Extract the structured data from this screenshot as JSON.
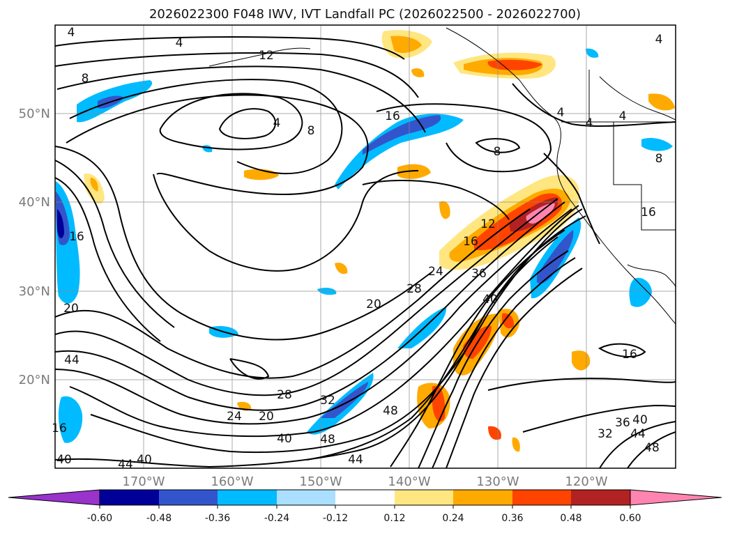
{
  "title": "2026022300 F048 IWV, IVT Landfall PC (2026022500 - 2026022700)",
  "map": {
    "lat_labels": [
      "50°N",
      "40°N",
      "30°N",
      "20°N"
    ],
    "lon_labels": [
      "170°W",
      "160°W",
      "150°W",
      "140°W",
      "130°W",
      "120°W"
    ],
    "lat_range": [
      10,
      60
    ],
    "lon_range": [
      -180,
      -110
    ],
    "grid": true,
    "contour_labels": [
      "4",
      "12",
      "4",
      "8",
      "16",
      "4",
      "8",
      "4",
      "4",
      "4",
      "8",
      "16",
      "8",
      "16",
      "12",
      "16",
      "24",
      "20",
      "28",
      "36",
      "40",
      "20",
      "44",
      "28",
      "24",
      "20",
      "32",
      "40",
      "48",
      "48",
      "44",
      "44",
      "40",
      "40",
      "16",
      "32",
      "36",
      "40",
      "44",
      "48",
      "16",
      "4"
    ]
  },
  "colorbar": {
    "tick_labels": [
      "-0.60",
      "-0.48",
      "-0.36",
      "-0.24",
      "-0.12",
      "0.12",
      "0.24",
      "0.36",
      "0.48",
      "0.60"
    ],
    "colors": [
      "#9933cc",
      "#000099",
      "#3355cc",
      "#00bbff",
      "#aadfff",
      "#ffffff",
      "#ffe680",
      "#ffaa00",
      "#ff4400",
      "#b22222",
      "#ff85b0"
    ]
  }
}
